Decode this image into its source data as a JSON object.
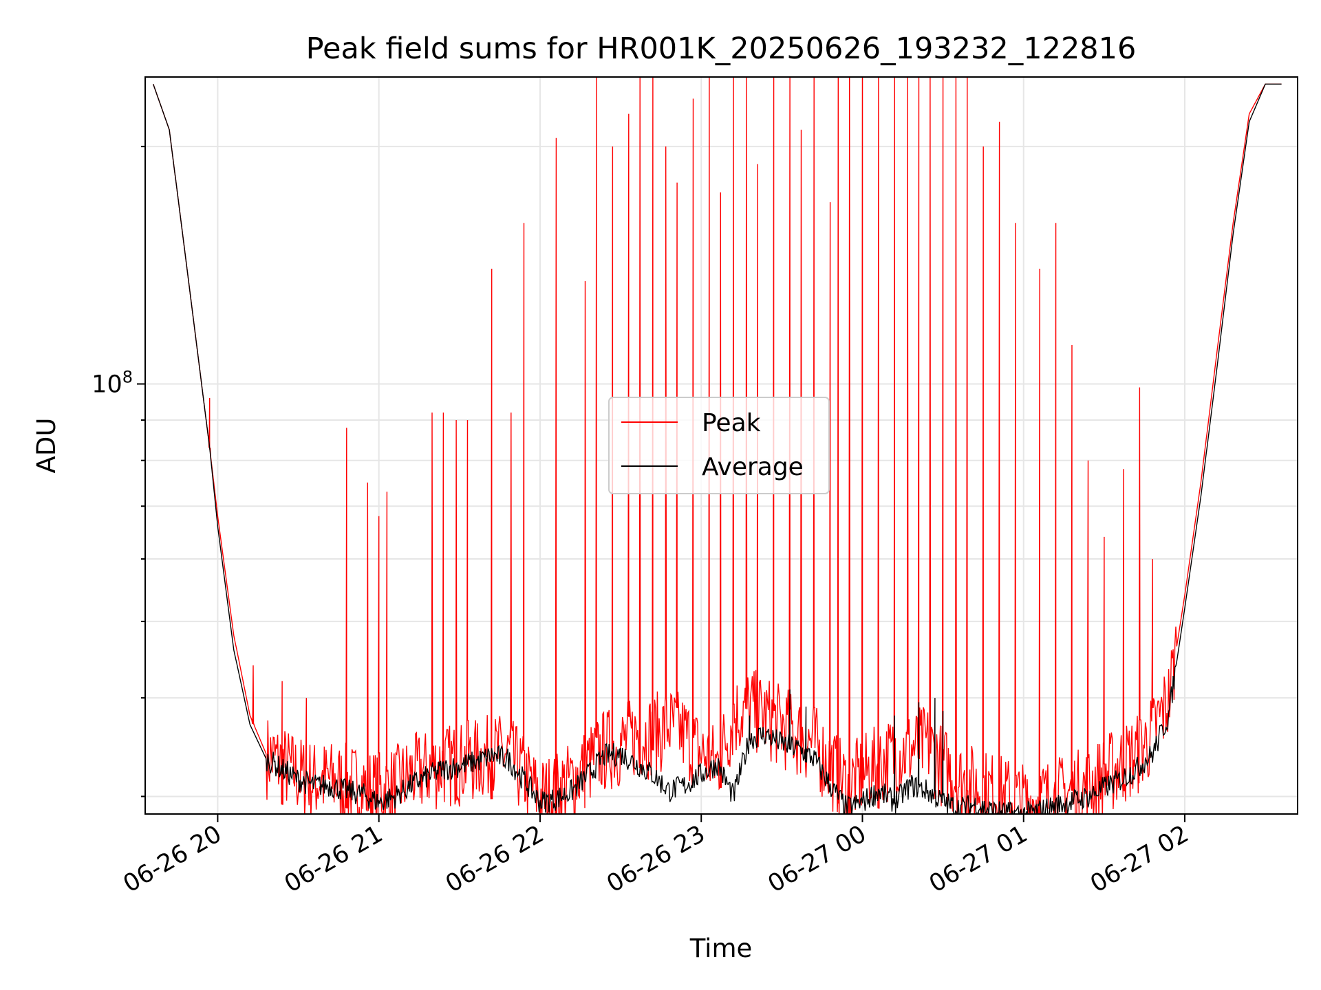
{
  "chart_data": {
    "type": "line",
    "title": "Peak field sums for HR001K_20250626_193232_122816",
    "xlabel": "Time",
    "ylabel": "ADU",
    "yscale": "log",
    "ylim": [
      28500000,
      245000000
    ],
    "xlim_hours": [
      19.55,
      26.7
    ],
    "x_ticks": [
      {
        "label": "06-26 20",
        "hour": 20
      },
      {
        "label": "06-26 21",
        "hour": 21
      },
      {
        "label": "06-26 22",
        "hour": 22
      },
      {
        "label": "06-26 23",
        "hour": 23
      },
      {
        "label": "06-27 00",
        "hour": 24
      },
      {
        "label": "06-27 01",
        "hour": 25
      },
      {
        "label": "06-27 02",
        "hour": 26
      }
    ],
    "y_ticks": [
      {
        "label": "10",
        "exp": "8",
        "value": 100000000
      }
    ],
    "y_minor_ticks": [
      30000000,
      40000000,
      50000000,
      60000000,
      70000000,
      80000000,
      90000000,
      200000000
    ],
    "grid": true,
    "legend": {
      "position": "center",
      "entries": [
        {
          "name": "Peak",
          "color": "#ff0000"
        },
        {
          "name": "Average",
          "color": "#000000"
        }
      ]
    },
    "series": [
      {
        "name": "Peak",
        "color": "#ff0000",
        "x": [
          19.6,
          19.7,
          19.8,
          19.9,
          19.95,
          20.0,
          20.1,
          20.2,
          20.3,
          20.4,
          20.5,
          20.6,
          20.7,
          20.8,
          20.9,
          21.0,
          21.1,
          21.2,
          21.3,
          21.4,
          21.5,
          21.6,
          21.7,
          21.8,
          21.9,
          22.0,
          22.1,
          22.2,
          22.3,
          22.4,
          22.5,
          22.6,
          22.7,
          22.8,
          22.9,
          23.0,
          23.1,
          23.2,
          23.3,
          23.4,
          23.5,
          23.6,
          23.7,
          23.8,
          23.9,
          24.0,
          24.1,
          24.2,
          24.3,
          24.4,
          24.5,
          24.6,
          24.7,
          24.8,
          24.9,
          25.0,
          25.1,
          25.2,
          25.3,
          25.4,
          25.5,
          25.6,
          25.7,
          25.8,
          25.9,
          26.0,
          26.1,
          26.2,
          26.3,
          26.4,
          26.5,
          26.6
        ],
        "y": [
          240000000,
          210000000,
          145000000,
          100000000,
          83000000,
          68000000,
          48000000,
          38000000,
          34000000,
          33000000,
          32000000,
          31500000,
          31500000,
          31200000,
          31000000,
          30500000,
          31000000,
          32000000,
          32500000,
          33000000,
          33200000,
          33500000,
          34000000,
          34000000,
          32000000,
          30000000,
          30500000,
          31500000,
          33000000,
          34500000,
          35000000,
          36000000,
          36000000,
          37000000,
          36000000,
          34000000,
          33000000,
          38000000,
          39000000,
          38000000,
          37000000,
          36000000,
          35000000,
          33000000,
          31000000,
          32000000,
          33000000,
          34000000,
          34500000,
          35000000,
          33000000,
          31500000,
          31000000,
          30500000,
          30000000,
          29500000,
          29800000,
          30000000,
          30500000,
          31000000,
          32000000,
          33000000,
          34000000,
          36000000,
          40000000,
          54000000,
          75000000,
          110000000,
          160000000,
          220000000,
          240000000,
          240000000
        ],
        "spikes_x": [
          19.95,
          20.22,
          20.4,
          20.55,
          20.8,
          20.93,
          21.0,
          21.05,
          21.33,
          21.4,
          21.48,
          21.55,
          21.7,
          21.82,
          21.9,
          22.1,
          22.28,
          22.35,
          22.45,
          22.55,
          22.62,
          22.7,
          22.78,
          22.85,
          22.95,
          23.05,
          23.12,
          23.2,
          23.28,
          23.35,
          23.45,
          23.55,
          23.62,
          23.7,
          23.8,
          23.85,
          23.92,
          24.0,
          24.1,
          24.2,
          24.28,
          24.35,
          24.42,
          24.5,
          24.58,
          24.65,
          24.75,
          24.85,
          24.95,
          25.1,
          25.2,
          25.3,
          25.4,
          25.5,
          25.62,
          25.72,
          25.8
        ],
        "spikes_y": [
          96000000,
          44000000,
          42000000,
          40000000,
          88000000,
          75000000,
          68000000,
          73000000,
          92000000,
          92000000,
          90000000,
          90000000,
          140000000,
          92000000,
          160000000,
          205000000,
          135000000,
          245000000,
          200000000,
          220000000,
          245000000,
          245000000,
          200000000,
          180000000,
          230000000,
          245000000,
          175000000,
          245000000,
          245000000,
          190000000,
          245000000,
          245000000,
          210000000,
          245000000,
          170000000,
          245000000,
          245000000,
          245000000,
          245000000,
          245000000,
          245000000,
          245000000,
          245000000,
          245000000,
          245000000,
          245000000,
          200000000,
          215000000,
          160000000,
          140000000,
          160000000,
          112000000,
          80000000,
          64000000,
          78000000,
          99000000,
          60000000
        ]
      },
      {
        "name": "Average",
        "color": "#000000",
        "x": [
          19.6,
          19.7,
          19.8,
          19.9,
          19.95,
          20.0,
          20.1,
          20.2,
          20.3,
          20.4,
          20.5,
          20.6,
          20.7,
          20.8,
          20.9,
          21.0,
          21.1,
          21.2,
          21.3,
          21.4,
          21.5,
          21.6,
          21.7,
          21.8,
          21.9,
          22.0,
          22.1,
          22.2,
          22.3,
          22.4,
          22.5,
          22.6,
          22.7,
          22.8,
          22.9,
          23.0,
          23.1,
          23.2,
          23.3,
          23.4,
          23.5,
          23.6,
          23.7,
          23.8,
          23.9,
          24.0,
          24.1,
          24.2,
          24.3,
          24.4,
          24.5,
          24.6,
          24.7,
          24.8,
          24.9,
          25.0,
          25.1,
          25.2,
          25.3,
          25.4,
          25.5,
          25.6,
          25.7,
          25.8,
          25.9,
          26.0,
          26.1,
          26.2,
          26.3,
          26.4,
          26.5,
          26.6
        ],
        "y": [
          240000000,
          210000000,
          145000000,
          100000000,
          83000000,
          66000000,
          46000000,
          37000000,
          33500000,
          32500000,
          31500000,
          31000000,
          31000000,
          30500000,
          30200000,
          29500000,
          30000000,
          31000000,
          31800000,
          32500000,
          32800000,
          33200000,
          33800000,
          33500000,
          31500000,
          29500000,
          29800000,
          30500000,
          32000000,
          33800000,
          34000000,
          33000000,
          32000000,
          30500000,
          31000000,
          32000000,
          33000000,
          30000000,
          35500000,
          36000000,
          35000000,
          34500000,
          33500000,
          31000000,
          29000000,
          29500000,
          30500000,
          29500000,
          31000000,
          30500000,
          29500000,
          29000000,
          29300000,
          28800000,
          28600000,
          28500000,
          28800000,
          29200000,
          29600000,
          30000000,
          30800000,
          31500000,
          32500000,
          34000000,
          38000000,
          52000000,
          72000000,
          105000000,
          155000000,
          215000000,
          240000000,
          240000000
        ],
        "spikes_x": [
          23.3,
          23.55,
          23.65,
          24.2,
          24.35,
          24.45,
          24.5
        ],
        "spikes_y": [
          38000000,
          41000000,
          39000000,
          38000000,
          39500000,
          40000000,
          38500000
        ]
      }
    ]
  }
}
